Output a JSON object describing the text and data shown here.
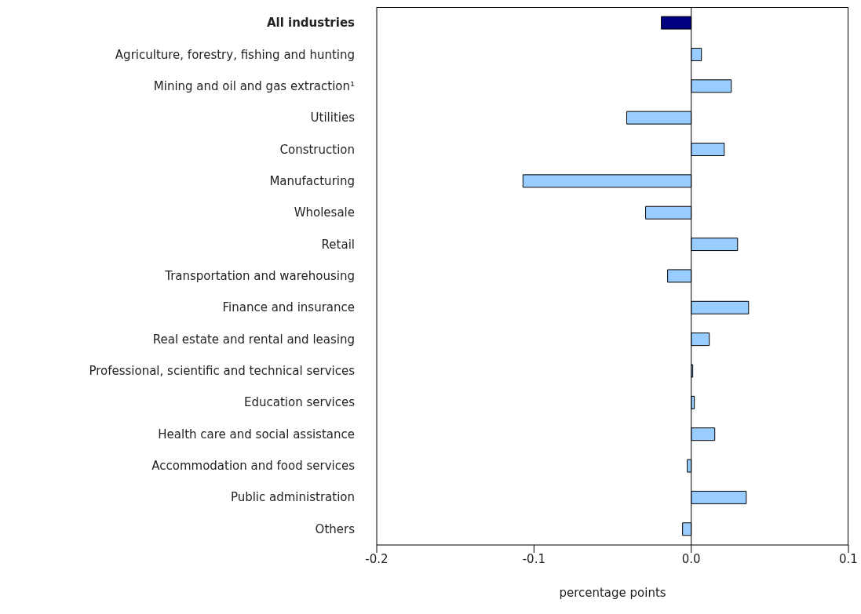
{
  "chart_data": {
    "type": "bar",
    "orientation": "horizontal",
    "xlabel": "percentage points",
    "categories": [
      "All industries",
      "Agriculture, forestry, fishing and hunting",
      "Mining and oil and gas extraction¹",
      "Utilities",
      "Construction",
      "Manufacturing",
      "Wholesale",
      "Retail",
      "Transportation and warehousing",
      "Finance and insurance",
      "Real estate and rental and leasing",
      "Professional, scientific and technical services",
      "Education services",
      "Health care and social assistance",
      "Accommodation and food services",
      "Public administration",
      "Others"
    ],
    "values": [
      -0.019,
      0.0065,
      0.0255,
      -0.041,
      0.021,
      -0.107,
      -0.029,
      0.0295,
      -0.015,
      0.0365,
      0.0115,
      0.001,
      0.002,
      0.015,
      -0.0025,
      0.035,
      -0.0055
    ],
    "colors": [
      "#000080",
      "#99ccff",
      "#99ccff",
      "#99ccff",
      "#99ccff",
      "#99ccff",
      "#99ccff",
      "#99ccff",
      "#99ccff",
      "#99ccff",
      "#99ccff",
      "#99ccff",
      "#99ccff",
      "#99ccff",
      "#99ccff",
      "#99ccff",
      "#99ccff"
    ],
    "xlim": [
      -0.2,
      0.1
    ],
    "xticks": [
      {
        "value": -0.2,
        "label": "-0.2"
      },
      {
        "value": -0.1,
        "label": "-0.1"
      },
      {
        "value": 0,
        "label": "0.0"
      },
      {
        "value": 0.1,
        "label": "0.1"
      }
    ],
    "legend": false
  }
}
